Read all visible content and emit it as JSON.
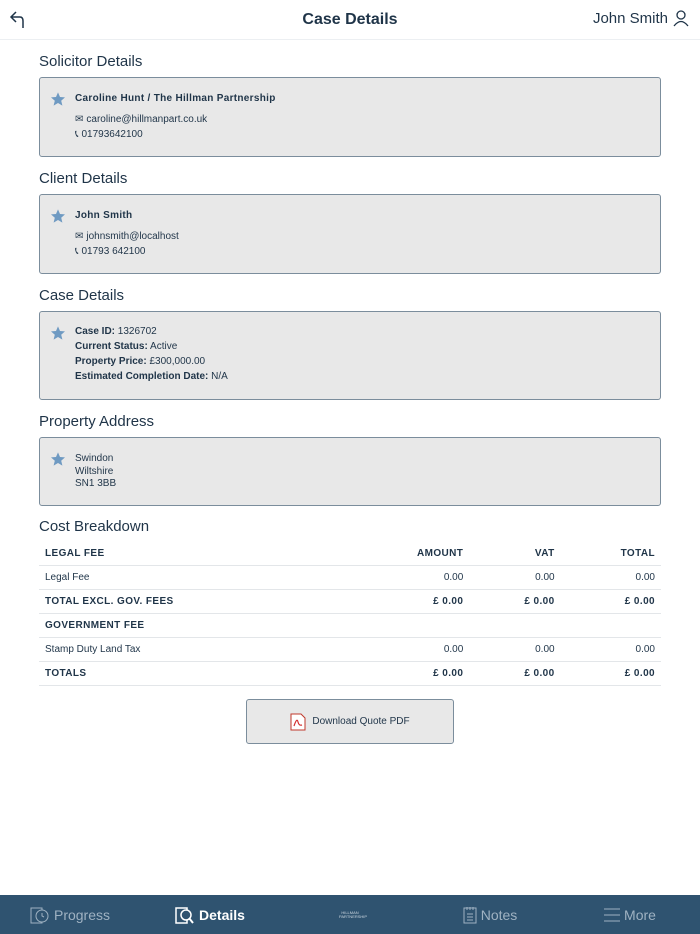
{
  "header": {
    "title": "Case Details",
    "user": "John Smith"
  },
  "solicitor": {
    "heading": "Solicitor Details",
    "name": "Caroline Hunt / The Hillman Partnership",
    "email": "caroline@hillmanpart.co.uk",
    "phone": "01793642100"
  },
  "client": {
    "heading": "Client Details",
    "name": "John Smith",
    "email": "johnsmith@localhost",
    "phone": "01793 642100"
  },
  "case": {
    "heading": "Case Details",
    "fields": [
      {
        "label": "Case ID:",
        "value": "1326702"
      },
      {
        "label": "Current Status:",
        "value": "Active"
      },
      {
        "label": "Property Price:",
        "value": "£300,000.00"
      },
      {
        "label": "Estimated Completion Date:",
        "value": "N/A"
      }
    ]
  },
  "address": {
    "heading": "Property Address",
    "lines": [
      "Swindon",
      "Wiltshire",
      "SN1 3BB"
    ]
  },
  "costs": {
    "heading": "Cost Breakdown",
    "columns": [
      "LEGAL FEE",
      "AMOUNT",
      "VAT",
      "TOTAL"
    ],
    "rows": [
      [
        "Legal Fee",
        "0.00",
        "0.00",
        "0.00"
      ],
      [
        "TOTAL EXCL. GOV. FEES",
        "£ 0.00",
        "£ 0.00",
        "£ 0.00"
      ],
      [
        "GOVERNMENT FEE",
        "",
        "",
        ""
      ],
      [
        "Stamp Duty Land Tax",
        "0.00",
        "0.00",
        "0.00"
      ],
      [
        "TOTALS",
        "£ 0.00",
        "£ 0.00",
        "£ 0.00"
      ]
    ]
  },
  "download_label": "Download Quote PDF",
  "nav": {
    "items": [
      {
        "label": "Progress",
        "icon": "progress-icon"
      },
      {
        "label": "Details",
        "icon": "details-icon",
        "active": true
      },
      {
        "label": "Notes",
        "icon": "notes-icon"
      },
      {
        "label": "More",
        "icon": "menu-icon"
      }
    ],
    "logo": "HILLMAN PARTNERSHIP"
  },
  "colors": {
    "nav_bg": "#2f5370",
    "star": "#6f9ac2",
    "card_bg": "#e8e8e8"
  }
}
